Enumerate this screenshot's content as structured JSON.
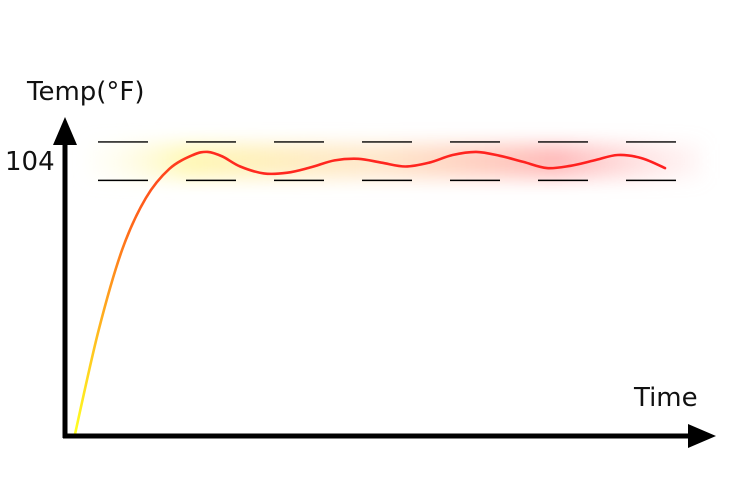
{
  "chart_data": {
    "type": "line",
    "title": "",
    "ylabel": "Temp(°F)",
    "xlabel": "Time",
    "y_ticks": [
      104
    ],
    "band": {
      "lower": 101.5,
      "upper": 106.5
    },
    "ylim": [
      68,
      110
    ],
    "xlim": [
      0,
      100
    ],
    "grid": false,
    "series": [
      {
        "x": [
          0,
          4,
          8,
          12,
          16,
          20,
          22.5,
          25,
          28,
          32,
          36,
          40,
          44,
          48,
          52,
          56,
          60,
          64,
          68,
          72,
          76,
          80,
          84,
          88,
          92,
          96,
          100
        ],
        "y": [
          68.5,
          82,
          92.5,
          99.2,
          103,
          104.8,
          105.2,
          104.6,
          103.3,
          102.4,
          102.5,
          103.2,
          104.1,
          104.3,
          103.8,
          103.3,
          103.8,
          104.8,
          105.2,
          104.7,
          103.9,
          103.1,
          103.4,
          104.1,
          104.8,
          104.4,
          103.1
        ]
      }
    ],
    "colors": {
      "axis": "#000000",
      "band_lines": "#000000",
      "line_start": "#ffff22",
      "line_mid": "#ff8a1a",
      "line_end": "#ff1f1f",
      "glow_yellow": "#fff4a0",
      "glow_red": "#ff8c8c"
    }
  }
}
